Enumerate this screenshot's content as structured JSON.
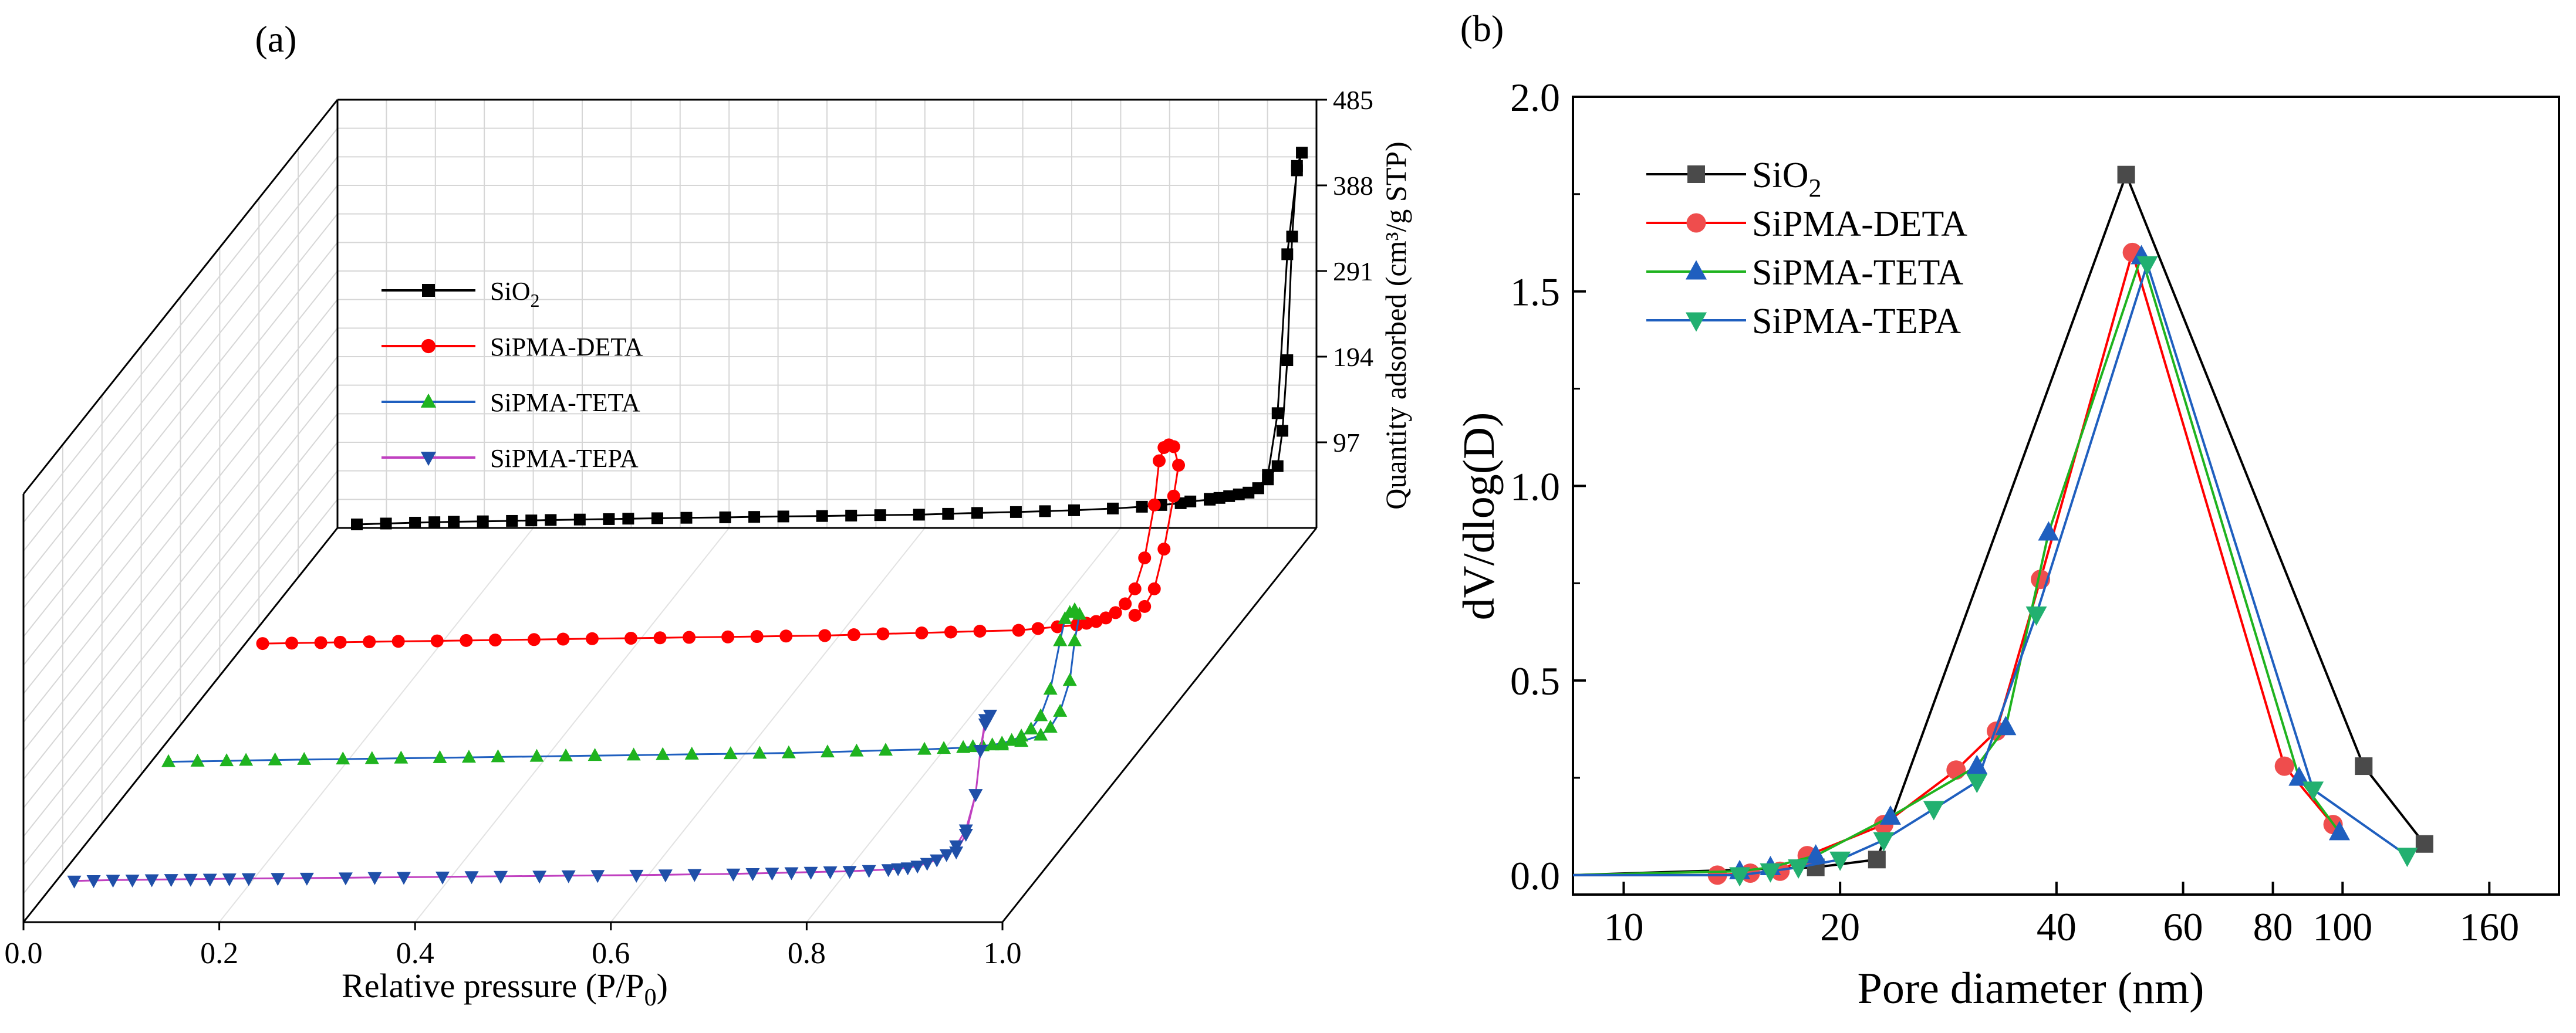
{
  "chart_data": [
    {
      "panel_label": "(a)",
      "type": "line",
      "projection": "3d-waterfall",
      "xlabel": "Relative pressure (P/P",
      "xlabel_sub": "0",
      "xlabel_close": ")",
      "ylabel": "Quantity adsorbed (cm³/g STP)",
      "xlim": [
        0,
        1
      ],
      "ylim": [
        0,
        485
      ],
      "x_ticks": [
        "0.0",
        "0.2",
        "0.4",
        "0.6",
        "0.8",
        "1.0"
      ],
      "y_ticks": [
        "97",
        "194",
        "291",
        "388",
        "485"
      ],
      "legend": [
        {
          "label": "SiO",
          "sub": "2",
          "color": "#000000",
          "marker": "square"
        },
        {
          "label": "SiPMA-DETA",
          "sub": "",
          "color": "#ff0000",
          "marker": "circle"
        },
        {
          "label": "SiPMA-TETA",
          "sub": "",
          "color": "#1fb31f",
          "marker": "triangle-up",
          "line_color": "#1f5fbf"
        },
        {
          "label": "SiPMA-TEPA",
          "sub": "",
          "color": "#1f4fa8",
          "marker": "triangle-down",
          "line_color": "#c040c0"
        }
      ],
      "series": [
        {
          "name": "SiO2",
          "color": "#000000",
          "marker": "square",
          "line_color": "#000000",
          "x": [
            0.02,
            0.05,
            0.08,
            0.1,
            0.12,
            0.15,
            0.18,
            0.2,
            0.22,
            0.25,
            0.28,
            0.3,
            0.33,
            0.36,
            0.4,
            0.43,
            0.46,
            0.5,
            0.53,
            0.56,
            0.6,
            0.63,
            0.66,
            0.7,
            0.73,
            0.76,
            0.8,
            0.83,
            0.85,
            0.87,
            0.88,
            0.9,
            0.91,
            0.92,
            0.94,
            0.95,
            0.96,
            0.97,
            0.975,
            0.98,
            0.985,
            0.99,
            0.995,
            0.99,
            0.98,
            0.97,
            0.96,
            0.95,
            0.93,
            0.9
          ],
          "y": [
            4,
            5,
            6,
            6.5,
            7,
            7.5,
            8,
            8.5,
            9,
            9.5,
            10,
            10.5,
            11,
            11.5,
            12,
            12.5,
            13,
            13.5,
            14,
            14.5,
            15,
            16,
            17,
            18,
            19,
            20,
            22,
            24,
            26,
            28,
            30,
            32,
            34,
            36,
            40,
            45,
            55,
            70,
            110,
            190,
            330,
            410,
            425,
            405,
            310,
            130,
            60,
            45,
            38,
            33
          ]
        },
        {
          "name": "SiPMA-DETA",
          "color": "#ff0000",
          "marker": "circle",
          "line_color": "#ff0000",
          "x": [
            0.02,
            0.05,
            0.08,
            0.1,
            0.13,
            0.16,
            0.2,
            0.23,
            0.26,
            0.3,
            0.33,
            0.36,
            0.4,
            0.43,
            0.46,
            0.5,
            0.53,
            0.56,
            0.6,
            0.63,
            0.66,
            0.7,
            0.73,
            0.76,
            0.8,
            0.82,
            0.84,
            0.86,
            0.87,
            0.88,
            0.89,
            0.9,
            0.91,
            0.92,
            0.93,
            0.94,
            0.945,
            0.95,
            0.955,
            0.96,
            0.965,
            0.96,
            0.95,
            0.94,
            0.93,
            0.92
          ],
          "y": [
            3,
            3.5,
            4,
            4.5,
            5,
            5.5,
            6,
            6.5,
            7,
            7.5,
            8,
            8.5,
            9,
            9.5,
            10,
            10.5,
            11,
            11.5,
            12,
            13,
            14,
            15,
            16,
            17,
            18,
            20,
            22,
            24,
            26,
            28,
            32,
            38,
            48,
            65,
            100,
            160,
            210,
            225,
            228,
            226,
            205,
            170,
            110,
            65,
            45,
            35
          ]
        },
        {
          "name": "SiPMA-TETA",
          "color": "#1fb31f",
          "marker": "triangle-up",
          "line_color": "#1f5fbf",
          "x": [
            0.02,
            0.05,
            0.08,
            0.1,
            0.13,
            0.16,
            0.2,
            0.23,
            0.26,
            0.3,
            0.33,
            0.36,
            0.4,
            0.43,
            0.46,
            0.5,
            0.53,
            0.56,
            0.6,
            0.63,
            0.66,
            0.7,
            0.73,
            0.76,
            0.8,
            0.82,
            0.84,
            0.85,
            0.86,
            0.87,
            0.88,
            0.89,
            0.9,
            0.91,
            0.92,
            0.93,
            0.94,
            0.945,
            0.95,
            0.955,
            0.96,
            0.955,
            0.95,
            0.94,
            0.93,
            0.92,
            0.9,
            0.88
          ],
          "y": [
            3,
            3.5,
            4,
            4.5,
            5,
            5.5,
            6,
            6.5,
            7,
            7.5,
            8,
            8.5,
            9,
            9.5,
            10,
            10.5,
            11,
            11.5,
            12,
            12.5,
            13,
            14,
            15,
            16,
            17,
            18,
            19,
            20,
            21,
            22,
            24,
            27,
            32,
            40,
            55,
            85,
            140,
            165,
            172,
            175,
            170,
            140,
            95,
            60,
            42,
            33,
            26,
            22
          ]
        },
        {
          "name": "SiPMA-TEPA",
          "color": "#1f4fa8",
          "marker": "triangle-down",
          "line_color": "#c040c0",
          "x": [
            0.02,
            0.04,
            0.06,
            0.08,
            0.1,
            0.12,
            0.14,
            0.16,
            0.18,
            0.2,
            0.23,
            0.26,
            0.3,
            0.33,
            0.36,
            0.4,
            0.43,
            0.46,
            0.5,
            0.53,
            0.56,
            0.6,
            0.63,
            0.66,
            0.7,
            0.72,
            0.74,
            0.76,
            0.78,
            0.8,
            0.82,
            0.84,
            0.86,
            0.87,
            0.88,
            0.89,
            0.9,
            0.91,
            0.92,
            0.93,
            0.94,
            0.95,
            0.955,
            0.96,
            0.965,
            0.96,
            0.955,
            0.95,
            0.94,
            0.93
          ],
          "y": [
            2,
            2.5,
            3,
            3.2,
            3.5,
            3.8,
            4,
            4.2,
            4.5,
            4.8,
            5,
            5.3,
            5.6,
            6,
            6.3,
            6.6,
            7,
            7.3,
            7.6,
            8,
            8.3,
            8.6,
            9,
            9.5,
            10,
            10.5,
            11,
            11.5,
            12,
            12.5,
            13,
            14,
            15,
            16,
            17,
            19,
            22,
            26,
            32,
            42,
            60,
            100,
            150,
            180,
            190,
            185,
            150,
            100,
            55,
            35
          ]
        }
      ]
    },
    {
      "panel_label": "(b)",
      "type": "line",
      "x_scale": "log",
      "xlabel": "Pore diameter (nm)",
      "ylabel": "dV/dlog(D)",
      "xlim": [
        8.5,
        200
      ],
      "ylim": [
        -0.05,
        2.0
      ],
      "x_ticks": [
        10,
        20,
        40,
        60,
        80,
        100,
        160
      ],
      "y_ticks": [
        0.0,
        0.5,
        1.0,
        1.5,
        2.0
      ],
      "x_tick_labels": [
        "10",
        "20",
        "40",
        "60",
        "80",
        "100",
        "160"
      ],
      "y_tick_labels": [
        "0.0",
        "0.5",
        "1.0",
        "1.5",
        "2.0"
      ],
      "legend": [
        {
          "label": "SiO",
          "sub": "2",
          "color": "#4a4a4a",
          "line_color": "#000000",
          "marker": "square"
        },
        {
          "label": "SiPMA-DETA",
          "sub": "",
          "color": "#ef4d4d",
          "line_color": "#ff0000",
          "marker": "circle"
        },
        {
          "label": "SiPMA-TETA",
          "sub": "",
          "color": "#1f5fbf",
          "line_color": "#1fb31f",
          "marker": "triangle-up"
        },
        {
          "label": "SiPMA-TEPA",
          "sub": "",
          "color": "#22b070",
          "line_color": "#1f5fbf",
          "marker": "triangle-down"
        }
      ],
      "series": [
        {
          "name": "SiO2",
          "marker_color": "#4a4a4a",
          "line_color": "#000000",
          "marker": "square",
          "x": [
            8.5,
            18.5,
            22.5,
            50,
            107,
            130
          ],
          "y": [
            0.0,
            0.02,
            0.04,
            1.8,
            0.28,
            0.08
          ]
        },
        {
          "name": "SiPMA-DETA",
          "marker_color": "#ef4d4d",
          "line_color": "#ff0000",
          "marker": "circle",
          "x": [
            8.5,
            13.5,
            15,
            16.5,
            18,
            23,
            29,
            33,
            38,
            51,
            83,
            97
          ],
          "y": [
            0.0,
            0.0,
            0.005,
            0.01,
            0.05,
            0.13,
            0.27,
            0.37,
            0.76,
            1.6,
            0.28,
            0.13
          ]
        },
        {
          "name": "SiPMA-TETA",
          "marker_color": "#1f5fbf",
          "line_color": "#1fb31f",
          "marker": "triangle-up",
          "x": [
            8.5,
            14.5,
            16,
            18.5,
            23.5,
            31,
            34,
            39,
            52.5,
            87,
            99
          ],
          "y": [
            0.0,
            0.01,
            0.02,
            0.05,
            0.15,
            0.28,
            0.38,
            0.88,
            1.59,
            0.25,
            0.11
          ]
        },
        {
          "name": "SiPMA-TEPA",
          "marker_color": "#22b070",
          "line_color": "#1f5fbf",
          "marker": "triangle-down",
          "x": [
            8.5,
            14.5,
            16,
            17.5,
            20,
            23,
            27,
            31,
            37.5,
            53.5,
            91,
            123
          ],
          "y": [
            0.0,
            0.0,
            0.01,
            0.02,
            0.04,
            0.09,
            0.17,
            0.24,
            0.67,
            1.57,
            0.22,
            0.05
          ]
        }
      ]
    }
  ]
}
